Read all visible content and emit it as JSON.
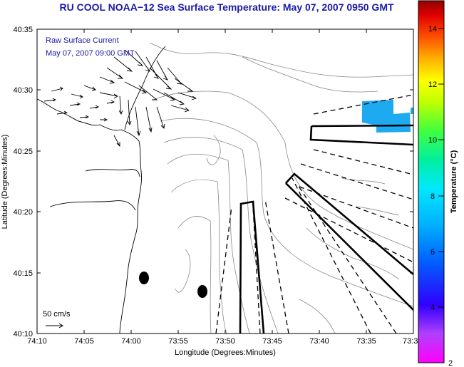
{
  "title": "RU COOL  NOAA−12  Sea Surface Temperature:  May 07, 2007 0950 GMT",
  "overlay": {
    "line1": "Raw Surface Current",
    "line2": "May 07, 2007 09:00 GMT",
    "scale_label": "50 cm/s"
  },
  "axes": {
    "xlabel": "Longitude (Degrees:Minutes)",
    "ylabel": "Latitude (Degrees:Minutes)",
    "xticks": [
      "74:10",
      "74:05",
      "74:00",
      "73:55",
      "73:50",
      "73:45",
      "73:40",
      "73:35",
      "73:3"
    ],
    "yticks": [
      "40:35",
      "40:30",
      "40:25",
      "40:20",
      "40:15",
      "40:10"
    ]
  },
  "colorbar": {
    "label": "Temperature (°C)",
    "ticks": [
      "14",
      "12",
      "10",
      "8",
      "6",
      "4",
      "2"
    ],
    "min": 2,
    "max": 15
  },
  "colors": {
    "title": "#1a1aa8",
    "sst_patch": "#1eaaf0",
    "contour": "#888888"
  },
  "icons": {
    "buoys": "filled-black-ellipse",
    "currents": "arrow"
  }
}
